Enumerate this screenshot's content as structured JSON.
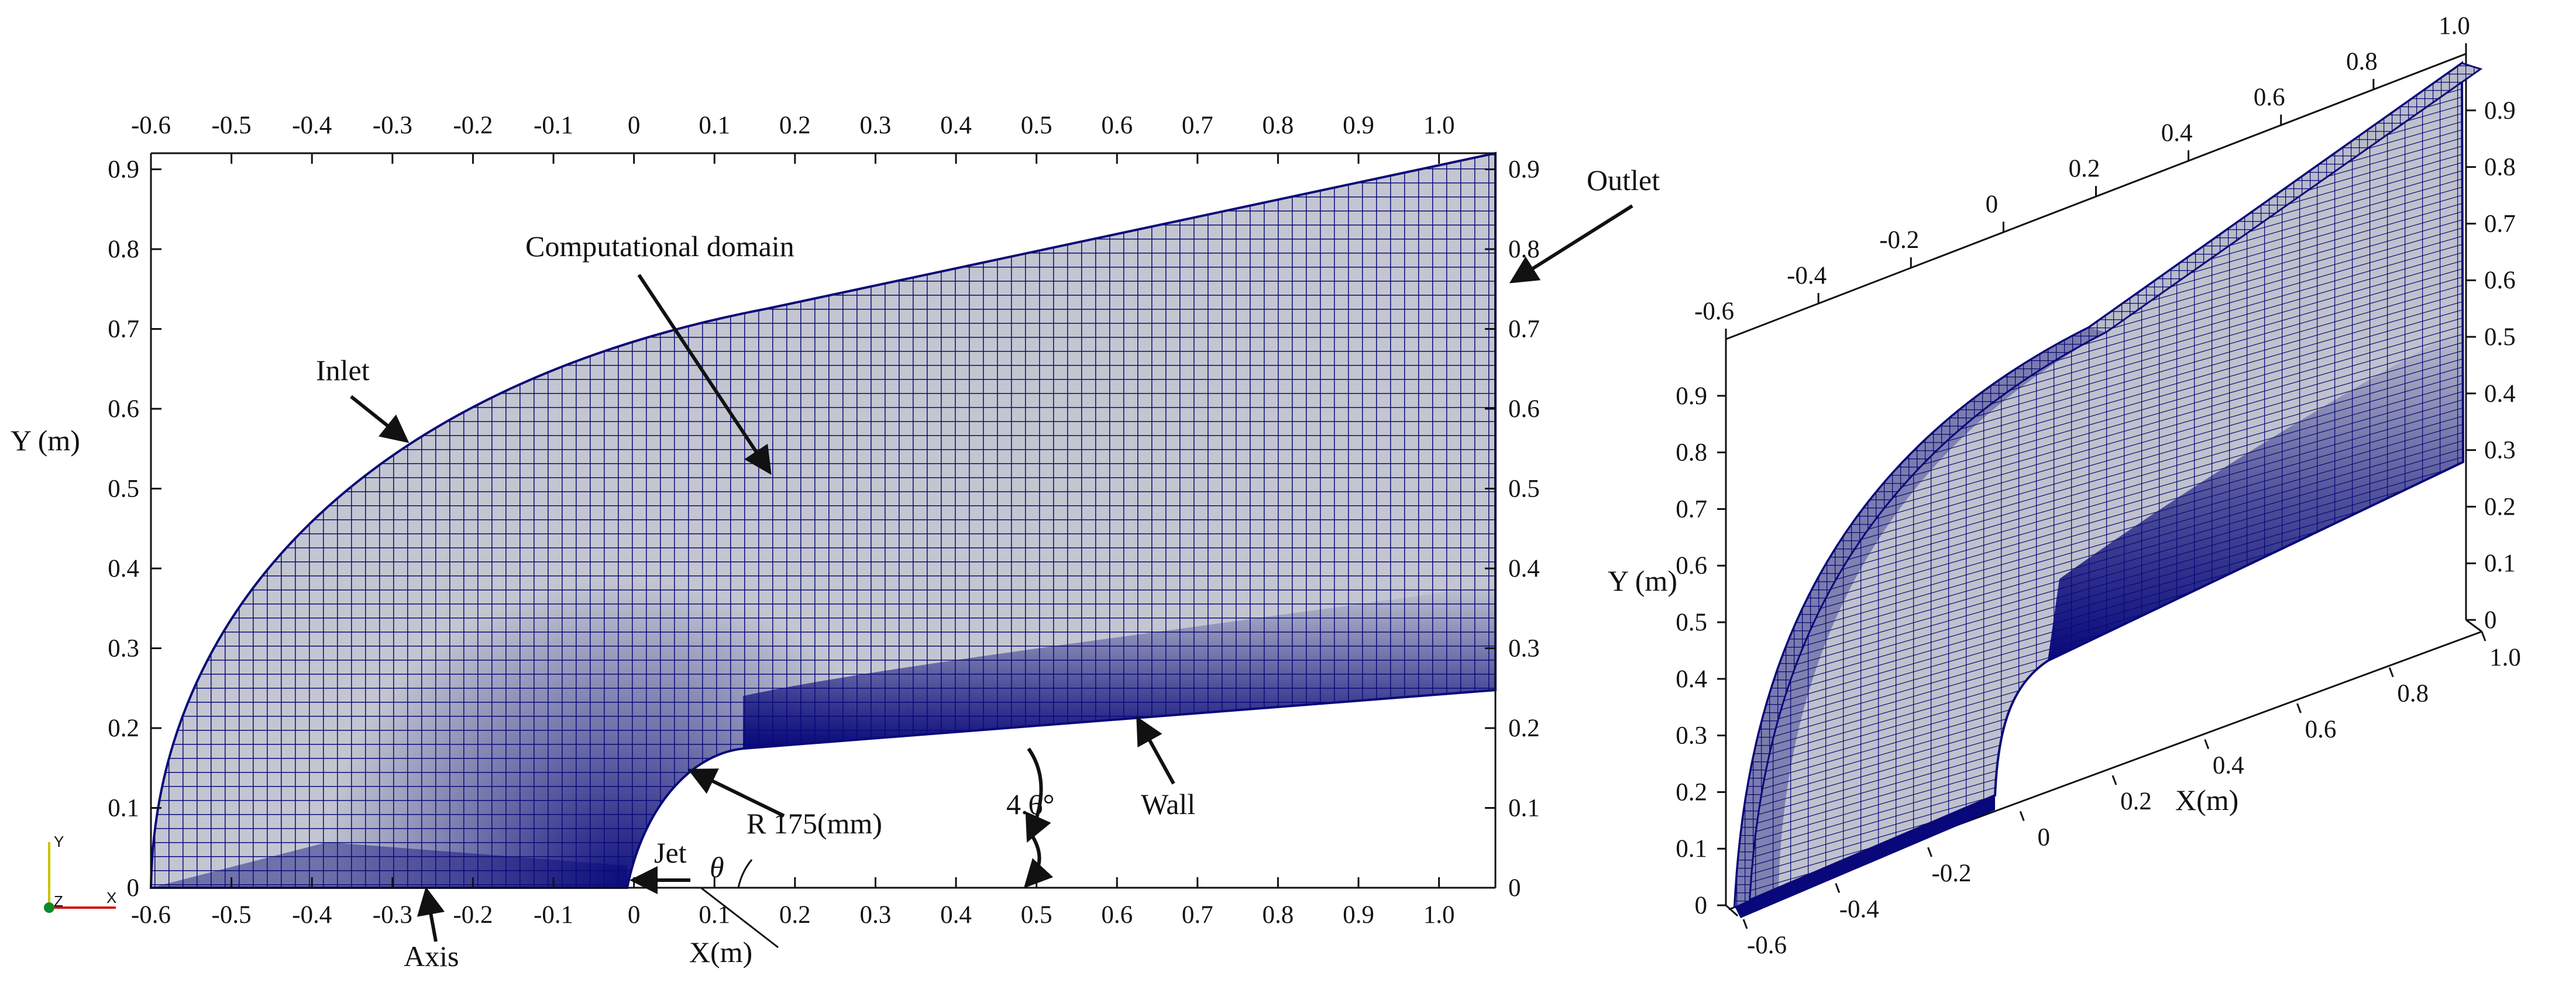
{
  "colors": {
    "mesh_fill": "#c3c6d0",
    "mesh_line": "#0a0a78",
    "dense": "#08087a",
    "text": "#111111"
  },
  "left_panel": {
    "x_ticks": [
      "-0.6",
      "-0.5",
      "-0.4",
      "-0.3",
      "-0.2",
      "-0.1",
      "0",
      "0.1",
      "0.2",
      "0.3",
      "0.4",
      "0.5",
      "0.6",
      "0.7",
      "0.8",
      "0.9",
      "1.0"
    ],
    "y_ticks": [
      "0",
      "0.1",
      "0.2",
      "0.3",
      "0.4",
      "0.5",
      "0.6",
      "0.7",
      "0.8",
      "0.9"
    ],
    "x_label": "X(m)",
    "y_label": "Y (m)",
    "annotations": {
      "computational_domain": "Computational domain",
      "inlet": "Inlet",
      "outlet": "Outlet",
      "wall": "Wall",
      "axis": "Axis",
      "jet": "Jet",
      "radius": "R 175(mm)",
      "theta": "θ",
      "angle": "4.6°"
    },
    "orientation": {
      "y": "Y",
      "z": "Z",
      "x": "X"
    }
  },
  "right_panel": {
    "top_ticks": [
      "-0.6",
      "-0.4",
      "-0.2",
      "0",
      "0.2",
      "0.4",
      "0.6",
      "0.8",
      "1.0"
    ],
    "left_ticks": [
      "0",
      "0.1",
      "0.2",
      "0.3",
      "0.4",
      "0.5",
      "0.6",
      "0.7",
      "0.8",
      "0.9"
    ],
    "right_ticks": [
      "0",
      "0.1",
      "0.2",
      "0.3",
      "0.4",
      "0.5",
      "0.6",
      "0.7",
      "0.8",
      "0.9"
    ],
    "bottom_ticks": [
      "-0.6",
      "-0.4",
      "-0.2",
      "0",
      "0.2",
      "0.4",
      "0.6",
      "0.8",
      "1.0"
    ],
    "y_label": "Y (m)",
    "x_label": "X(m)"
  }
}
